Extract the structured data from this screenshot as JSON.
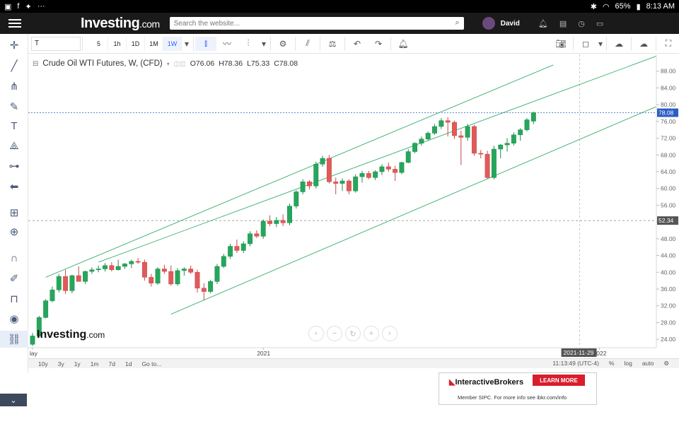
{
  "status_bar": {
    "battery": "65%",
    "time": "8:13 AM"
  },
  "site": {
    "logo": "Investing",
    "logo_suffix": ".com",
    "search_placeholder": "Search the website...",
    "user_name": "David"
  },
  "toolbar": {
    "symbol": "T",
    "timeframes": [
      "5",
      "1h",
      "1D",
      "1M",
      "1W"
    ],
    "active_timeframe": "1W"
  },
  "chart": {
    "title": "Crude Oil WTI Futures, W, (CFD)",
    "ohlc": {
      "open": "O76.06",
      "high": "H78.36",
      "low": "L75.33",
      "close": "C78.08"
    },
    "current_price_label": "78.08",
    "crosshair_price_label": "52.34",
    "crosshair_date_label": "2021-11-29",
    "watermark": "Investing",
    "watermark_suffix": ".com"
  },
  "range_bar": {
    "ranges": [
      "10y",
      "3y",
      "1y",
      "1m",
      "7d",
      "1d",
      "Go to..."
    ],
    "clock": "11:13:49 (UTC-4)",
    "options": [
      "%",
      "log",
      "auto"
    ]
  },
  "ad": {
    "brand": "InteractiveBrokers",
    "cta": "LEARN MORE",
    "disclaimer": "Member SIPC. For more info see ibkr.com/info"
  },
  "colors": {
    "up": "#26a65b",
    "down": "#e05a5a",
    "channel": "#1fa35a",
    "accent": "#2962ff",
    "price_badge": "#2b5cc4"
  },
  "chart_data": {
    "type": "candlestick",
    "ylim": [
      22,
      92
    ],
    "yticks": [
      24.0,
      28.0,
      32.0,
      36.0,
      40.0,
      44.0,
      48.0,
      52.0,
      56.0,
      60.0,
      64.0,
      68.0,
      72.0,
      76.0,
      80.0,
      84.0,
      88.0
    ],
    "ytick_labels": [
      "24.00",
      "28.00",
      "32.00",
      "36.00",
      "40.00",
      "44.00",
      "48.00",
      "52.00",
      "56.00",
      "60.00",
      "64.00",
      "68.00",
      "72.00",
      "76.00",
      "80.00",
      "84.00",
      "88.00"
    ],
    "xtick_labels": [
      {
        "label": "lay",
        "index": 0
      },
      {
        "label": "2021",
        "index": 35
      },
      {
        "label": "2022",
        "index": 86
      }
    ],
    "candles": [
      [
        22.8,
        25.5,
        22.4,
        24.8
      ],
      [
        24.8,
        29.6,
        24.5,
        29.2
      ],
      [
        29.2,
        33.6,
        29.0,
        33.2
      ],
      [
        33.2,
        36.6,
        32.8,
        35.8
      ],
      [
        35.8,
        39.6,
        35.2,
        39.0
      ],
      [
        39.0,
        40.6,
        34.8,
        35.6
      ],
      [
        35.6,
        39.4,
        35.0,
        39.2
      ],
      [
        39.2,
        41.4,
        38.2,
        37.8
      ],
      [
        37.8,
        40.4,
        37.2,
        40.2
      ],
      [
        40.2,
        41.2,
        39.6,
        40.6
      ],
      [
        40.6,
        41.6,
        40.0,
        40.8
      ],
      [
        40.8,
        42.2,
        40.2,
        41.6
      ],
      [
        41.6,
        42.4,
        40.2,
        40.6
      ],
      [
        40.6,
        43.0,
        40.4,
        41.4
      ],
      [
        41.4,
        42.2,
        40.8,
        42.0
      ],
      [
        42.0,
        43.0,
        41.0,
        42.6
      ],
      [
        42.6,
        43.4,
        42.0,
        42.4
      ],
      [
        42.4,
        43.0,
        38.0,
        38.8
      ],
      [
        38.8,
        39.6,
        36.6,
        37.4
      ],
      [
        37.4,
        41.2,
        37.0,
        40.8
      ],
      [
        40.8,
        41.8,
        39.6,
        40.2
      ],
      [
        40.2,
        41.6,
        36.8,
        37.2
      ],
      [
        37.2,
        41.0,
        36.8,
        40.4
      ],
      [
        40.4,
        41.2,
        39.2,
        40.8
      ],
      [
        40.8,
        41.6,
        39.6,
        40.0
      ],
      [
        40.0,
        40.6,
        35.2,
        36.2
      ],
      [
        36.2,
        37.4,
        33.4,
        35.4
      ],
      [
        35.4,
        38.2,
        35.0,
        37.8
      ],
      [
        37.8,
        42.0,
        37.2,
        41.4
      ],
      [
        41.4,
        44.4,
        41.0,
        43.8
      ],
      [
        43.8,
        46.8,
        43.2,
        46.2
      ],
      [
        46.2,
        47.8,
        44.6,
        45.2
      ],
      [
        45.2,
        47.4,
        44.6,
        46.8
      ],
      [
        46.8,
        49.8,
        46.2,
        49.2
      ],
      [
        49.2,
        50.0,
        48.2,
        48.6
      ],
      [
        48.6,
        52.6,
        48.0,
        52.2
      ],
      [
        52.2,
        53.6,
        51.0,
        51.6
      ],
      [
        51.6,
        53.2,
        50.8,
        52.4
      ],
      [
        52.4,
        53.8,
        51.0,
        51.8
      ],
      [
        51.8,
        56.4,
        51.2,
        55.8
      ],
      [
        55.8,
        59.6,
        55.2,
        59.2
      ],
      [
        59.2,
        62.2,
        58.6,
        61.6
      ],
      [
        61.6,
        62.0,
        59.8,
        60.6
      ],
      [
        60.6,
        66.4,
        60.0,
        65.8
      ],
      [
        65.8,
        67.8,
        65.2,
        67.2
      ],
      [
        67.2,
        68.0,
        61.2,
        61.6
      ],
      [
        61.6,
        62.6,
        58.6,
        61.2
      ],
      [
        61.2,
        62.4,
        59.4,
        61.8
      ],
      [
        61.8,
        62.2,
        58.6,
        59.4
      ],
      [
        59.4,
        63.4,
        59.0,
        62.8
      ],
      [
        62.8,
        64.2,
        61.4,
        63.6
      ],
      [
        63.6,
        64.2,
        62.2,
        62.6
      ],
      [
        62.6,
        64.4,
        62.0,
        64.0
      ],
      [
        64.0,
        65.8,
        63.2,
        65.2
      ],
      [
        65.2,
        66.2,
        64.0,
        64.6
      ],
      [
        64.6,
        65.4,
        61.8,
        63.8
      ],
      [
        63.8,
        66.4,
        63.4,
        66.2
      ],
      [
        66.2,
        69.4,
        66.0,
        68.8
      ],
      [
        68.8,
        71.0,
        68.4,
        70.8
      ],
      [
        70.8,
        72.4,
        70.2,
        71.8
      ],
      [
        71.8,
        73.6,
        71.4,
        73.2
      ],
      [
        73.2,
        75.4,
        72.8,
        74.8
      ],
      [
        74.8,
        76.8,
        74.2,
        76.2
      ],
      [
        76.2,
        77.0,
        72.4,
        75.8
      ],
      [
        75.8,
        76.2,
        71.8,
        72.6
      ],
      [
        72.6,
        73.8,
        65.6,
        72.2
      ],
      [
        72.2,
        75.4,
        71.4,
        74.8
      ],
      [
        74.8,
        75.2,
        67.8,
        68.4
      ],
      [
        68.4,
        69.2,
        67.2,
        68.2
      ],
      [
        68.2,
        69.0,
        62.4,
        62.6
      ],
      [
        62.6,
        70.2,
        62.2,
        69.4
      ],
      [
        69.4,
        70.6,
        67.2,
        70.4
      ],
      [
        70.4,
        72.0,
        68.8,
        70.8
      ],
      [
        70.8,
        73.4,
        70.2,
        72.8
      ],
      [
        72.8,
        74.4,
        71.4,
        74.0
      ],
      [
        74.0,
        76.8,
        73.6,
        76.4
      ],
      [
        76.06,
        78.36,
        75.33,
        78.08
      ]
    ]
  }
}
